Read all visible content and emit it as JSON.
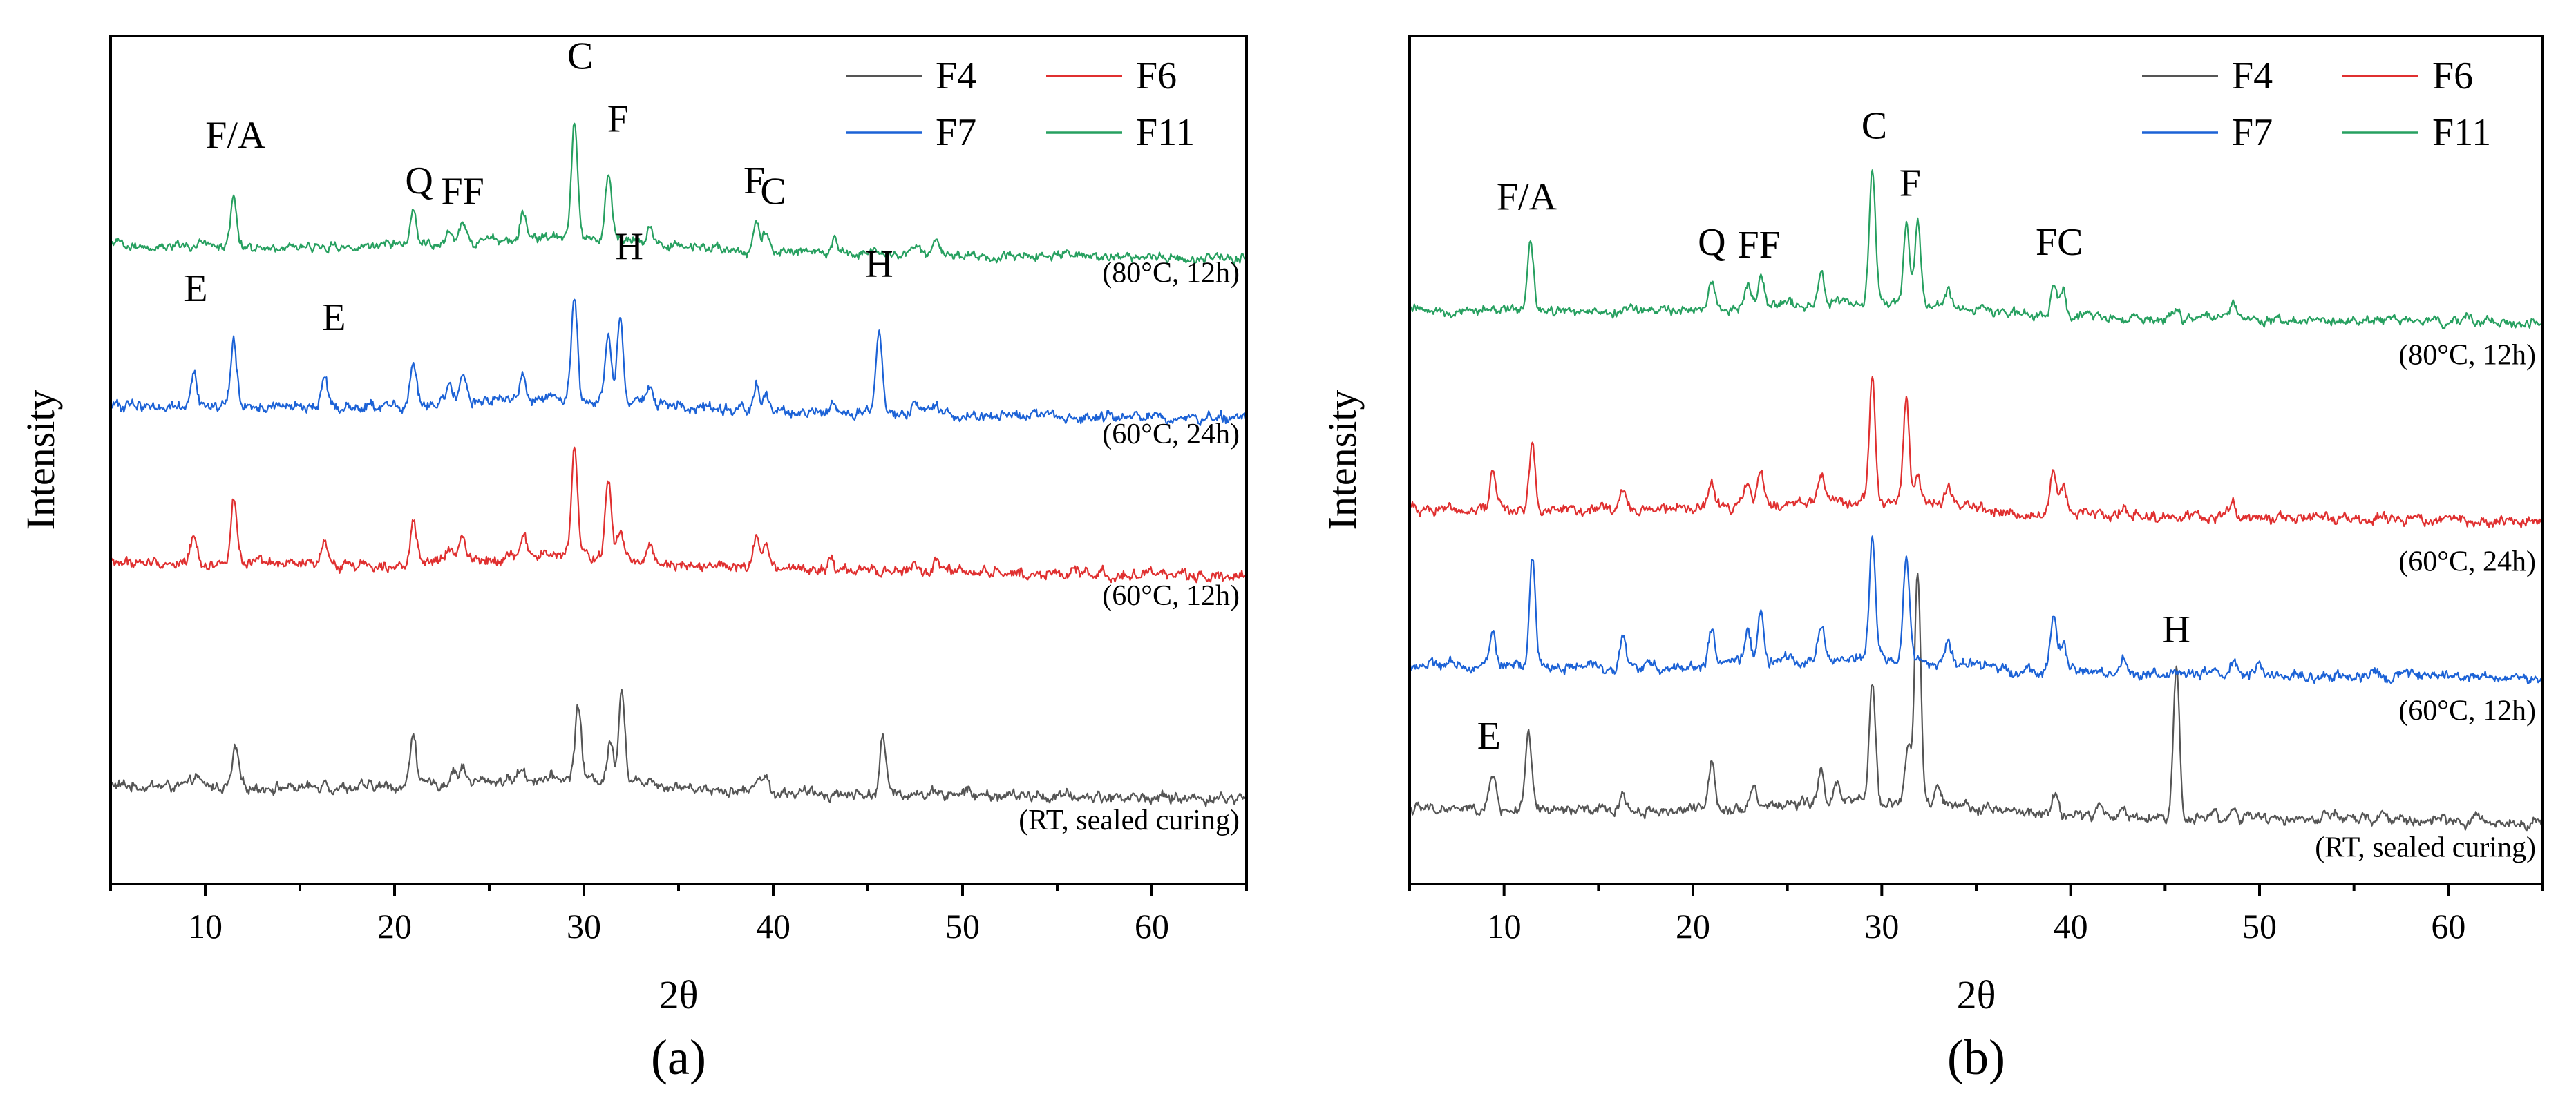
{
  "figure": {
    "colors": {
      "F4": "#555555",
      "F6": "#e03030",
      "F7": "#1c62d6",
      "F11": "#27a060"
    }
  },
  "chart_data": [
    {
      "type": "line",
      "panel_label": "(a)",
      "xlabel": "2θ",
      "ylabel": "Intensity",
      "xlim": [
        5,
        65
      ],
      "xticks": [
        10,
        20,
        30,
        40,
        50,
        60
      ],
      "ylim": [
        0,
        6.2
      ],
      "legend": {
        "position": "top-right",
        "entries": [
          "F4",
          "F6",
          "F7",
          "F11"
        ]
      },
      "series": [
        {
          "name": "F4",
          "condition": "(RT, sealed curing)",
          "baseline": 0.72,
          "noise": 0.035,
          "peaks": [
            [
              9.5,
              0.08
            ],
            [
              11.6,
              0.28
            ],
            [
              16.3,
              0.06
            ],
            [
              21.0,
              0.4
            ],
            [
              23.1,
              0.1
            ],
            [
              23.6,
              0.12
            ],
            [
              26.7,
              0.08
            ],
            [
              29.7,
              0.55
            ],
            [
              31.4,
              0.28
            ],
            [
              32.0,
              0.7
            ],
            [
              33.5,
              0.06
            ],
            [
              39.2,
              0.12
            ],
            [
              39.6,
              0.1
            ],
            [
              45.8,
              0.42
            ],
            [
              47.5,
              0.04
            ],
            [
              48.6,
              0.05
            ],
            [
              50.2,
              0.04
            ]
          ]
        },
        {
          "name": "F6",
          "condition": "(60°C, 12h)",
          "baseline": 2.35,
          "noise": 0.035,
          "peaks": [
            [
              9.4,
              0.22
            ],
            [
              11.5,
              0.5
            ],
            [
              16.3,
              0.14
            ],
            [
              21.0,
              0.27
            ],
            [
              22.9,
              0.09
            ],
            [
              23.6,
              0.2
            ],
            [
              26.8,
              0.16
            ],
            [
              29.5,
              0.78
            ],
            [
              31.3,
              0.55
            ],
            [
              31.9,
              0.2
            ],
            [
              33.5,
              0.12
            ],
            [
              39.1,
              0.22
            ],
            [
              39.6,
              0.16
            ],
            [
              43.0,
              0.06
            ],
            [
              47.5,
              0.06
            ],
            [
              48.6,
              0.08
            ]
          ]
        },
        {
          "name": "F7",
          "condition": "(60°C, 24h)",
          "baseline": 3.5,
          "noise": 0.035,
          "peaks": [
            [
              9.4,
              0.28
            ],
            [
              11.5,
              0.48
            ],
            [
              16.3,
              0.22
            ],
            [
              21.0,
              0.3
            ],
            [
              22.9,
              0.12
            ],
            [
              23.6,
              0.18
            ],
            [
              26.8,
              0.18
            ],
            [
              29.5,
              0.72
            ],
            [
              31.3,
              0.48
            ],
            [
              31.9,
              0.62
            ],
            [
              33.5,
              0.12
            ],
            [
              39.1,
              0.2
            ],
            [
              39.6,
              0.14
            ],
            [
              43.2,
              0.07
            ],
            [
              45.6,
              0.6
            ],
            [
              47.5,
              0.06
            ],
            [
              48.6,
              0.08
            ]
          ]
        },
        {
          "name": "F11",
          "condition": "(80°C, 12h)",
          "baseline": 4.67,
          "noise": 0.03,
          "peaks": [
            [
              11.5,
              0.37
            ],
            [
              21.0,
              0.26
            ],
            [
              22.9,
              0.1
            ],
            [
              23.6,
              0.12
            ],
            [
              26.8,
              0.22
            ],
            [
              29.5,
              0.85
            ],
            [
              31.3,
              0.48
            ],
            [
              33.5,
              0.1
            ],
            [
              39.1,
              0.2
            ],
            [
              39.6,
              0.15
            ],
            [
              43.2,
              0.1
            ],
            [
              47.5,
              0.08
            ],
            [
              48.6,
              0.12
            ]
          ]
        }
      ],
      "annotations": [
        {
          "text": "F/A",
          "x": 11.6,
          "y": 5.38
        },
        {
          "text": "Q",
          "x": 21.3,
          "y": 5.05
        },
        {
          "text": "FF",
          "x": 23.6,
          "y": 4.97
        },
        {
          "text": "C",
          "x": 29.8,
          "y": 5.96
        },
        {
          "text": "F",
          "x": 31.8,
          "y": 5.5
        },
        {
          "text": "F",
          "x": 39.0,
          "y": 5.05
        },
        {
          "text": "C",
          "x": 40.0,
          "y": 4.97
        },
        {
          "text": "E",
          "x": 9.5,
          "y": 4.26
        },
        {
          "text": "E",
          "x": 16.8,
          "y": 4.05
        },
        {
          "text": "H",
          "x": 32.4,
          "y": 4.57
        },
        {
          "text": "H",
          "x": 45.6,
          "y": 4.44
        }
      ],
      "condition_labels": [
        {
          "text": "(80°C, 12h)",
          "y": 4.4
        },
        {
          "text": "(60°C, 24h)",
          "y": 3.22
        },
        {
          "text": "(60°C, 12h)",
          "y": 2.04
        },
        {
          "text": "(RT, sealed curing)",
          "y": 0.4
        }
      ]
    },
    {
      "type": "line",
      "panel_label": "(b)",
      "xlabel": "2θ",
      "ylabel": "Intensity",
      "xlim": [
        5,
        65
      ],
      "xticks": [
        10,
        20,
        30,
        40,
        50,
        60
      ],
      "ylim": [
        0,
        6.2
      ],
      "legend": {
        "position": "top-right",
        "entries": [
          "F4",
          "F6",
          "F7",
          "F11"
        ]
      },
      "series": [
        {
          "name": "F4",
          "condition": "(RT, sealed curing)",
          "baseline": 0.55,
          "noise": 0.035,
          "peaks": [
            [
              9.4,
              0.28
            ],
            [
              11.3,
              0.55
            ],
            [
              16.3,
              0.14
            ],
            [
              21.0,
              0.38
            ],
            [
              23.2,
              0.16
            ],
            [
              26.8,
              0.22
            ],
            [
              27.6,
              0.12
            ],
            [
              29.5,
              0.9
            ],
            [
              31.4,
              0.42
            ],
            [
              31.9,
              1.7
            ],
            [
              33.0,
              0.15
            ],
            [
              35.5,
              0.08
            ],
            [
              39.2,
              0.15
            ],
            [
              41.5,
              0.08
            ],
            [
              42.8,
              0.06
            ],
            [
              45.6,
              1.1
            ],
            [
              47.5,
              0.06
            ],
            [
              48.6,
              0.06
            ],
            [
              54.0,
              0.05
            ],
            [
              56.5,
              0.06
            ]
          ]
        },
        {
          "name": "F7",
          "condition": "(60°C, 12h)",
          "baseline": 1.6,
          "noise": 0.035,
          "peaks": [
            [
              9.4,
              0.26
            ],
            [
              11.5,
              0.78
            ],
            [
              16.3,
              0.22
            ],
            [
              21.0,
              0.26
            ],
            [
              22.9,
              0.28
            ],
            [
              23.6,
              0.36
            ],
            [
              26.8,
              0.24
            ],
            [
              29.5,
              0.88
            ],
            [
              31.3,
              0.74
            ],
            [
              33.5,
              0.16
            ],
            [
              39.1,
              0.38
            ],
            [
              39.6,
              0.22
            ],
            [
              42.8,
              0.08
            ],
            [
              48.6,
              0.1
            ],
            [
              50.0,
              0.06
            ]
          ]
        },
        {
          "name": "F6",
          "condition": "(60°C, 24h)",
          "baseline": 2.75,
          "noise": 0.035,
          "peaks": [
            [
              9.4,
              0.28
            ],
            [
              11.5,
              0.48
            ],
            [
              16.3,
              0.16
            ],
            [
              21.0,
              0.2
            ],
            [
              22.9,
              0.16
            ],
            [
              23.6,
              0.24
            ],
            [
              26.8,
              0.2
            ],
            [
              29.5,
              0.92
            ],
            [
              31.3,
              0.76
            ],
            [
              31.9,
              0.22
            ],
            [
              33.5,
              0.14
            ],
            [
              39.1,
              0.32
            ],
            [
              39.6,
              0.22
            ],
            [
              42.8,
              0.08
            ],
            [
              48.6,
              0.1
            ]
          ]
        },
        {
          "name": "F11",
          "condition": "(80°C, 12h)",
          "baseline": 4.2,
          "noise": 0.03,
          "peaks": [
            [
              11.4,
              0.48
            ],
            [
              21.0,
              0.22
            ],
            [
              22.9,
              0.18
            ],
            [
              23.6,
              0.24
            ],
            [
              26.8,
              0.22
            ],
            [
              29.5,
              0.98
            ],
            [
              31.3,
              0.58
            ],
            [
              31.9,
              0.6
            ],
            [
              33.5,
              0.14
            ],
            [
              39.1,
              0.26
            ],
            [
              39.6,
              0.2
            ],
            [
              45.6,
              0.08
            ],
            [
              48.6,
              0.12
            ],
            [
              61.0,
              0.06
            ]
          ]
        }
      ],
      "annotations": [
        {
          "text": "F/A",
          "x": 11.2,
          "y": 4.93
        },
        {
          "text": "Q",
          "x": 21.0,
          "y": 4.6
        },
        {
          "text": "FF",
          "x": 23.5,
          "y": 4.58
        },
        {
          "text": "C",
          "x": 29.6,
          "y": 5.45
        },
        {
          "text": "F",
          "x": 31.5,
          "y": 5.03
        },
        {
          "text": "FC",
          "x": 39.4,
          "y": 4.6
        },
        {
          "text": "E",
          "x": 9.2,
          "y": 0.99
        },
        {
          "text": "H",
          "x": 45.6,
          "y": 1.77
        }
      ],
      "condition_labels": [
        {
          "text": "(80°C, 12h)",
          "y": 3.8
        },
        {
          "text": "(60°C, 24h)",
          "y": 2.29
        },
        {
          "text": "(60°C, 12h)",
          "y": 1.2
        },
        {
          "text": "(RT, sealed curing)",
          "y": 0.2
        }
      ]
    }
  ]
}
